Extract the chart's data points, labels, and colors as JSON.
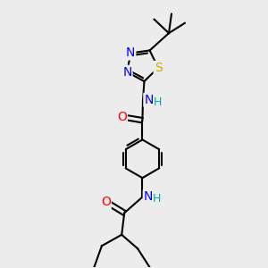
{
  "background_color": "#ececec",
  "atom_colors": {
    "N": "#0000ff",
    "O": "#ff0000",
    "S": "#ccaa00",
    "H": "#00aaaa"
  },
  "bond_color": "#000000",
  "bond_width": 1.5,
  "font_size": 10
}
